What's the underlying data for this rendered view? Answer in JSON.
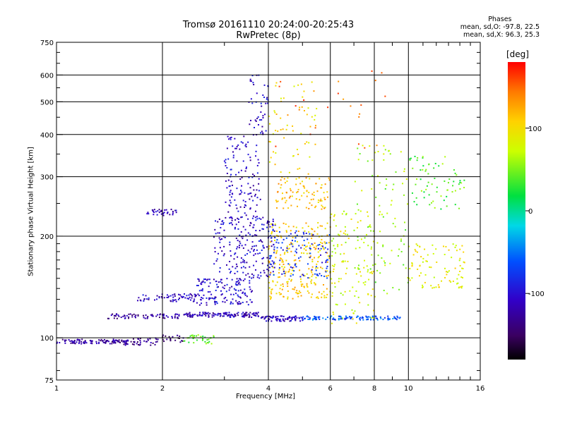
{
  "header": {
    "title_line1": "Tromsø 20161110 20:24:00-20:25:43",
    "title_line2": "RwPretec (8p)"
  },
  "stats": {
    "heading": "Phases",
    "line_O": "mean, sd,O: -97.8, 22.5",
    "line_X": "mean, sd,X:  96.3, 25.3"
  },
  "chart_data": {
    "type": "scatter",
    "xlabel": "Frequency [MHz]",
    "ylabel": "Stationary phase Virtual Height [km]",
    "xscale": "log",
    "yscale": "log",
    "xlim": [
      1,
      16
    ],
    "ylim": [
      75,
      750
    ],
    "xticks": [
      1,
      2,
      4,
      6,
      8,
      10,
      16
    ],
    "yticks": [
      75,
      100,
      200,
      300,
      400,
      500,
      600,
      750
    ],
    "xgrid": [
      2,
      4,
      6,
      8,
      10
    ],
    "ygrid": [
      100,
      200,
      300,
      400,
      500,
      600
    ],
    "grid": true,
    "colorbar": {
      "label": "[deg]",
      "range": [
        -180,
        180
      ],
      "ticks": [
        100,
        0,
        -100
      ]
    },
    "phase_stats": {
      "O": {
        "mean": -97.8,
        "sd": 22.5
      },
      "X": {
        "mean": 96.3,
        "sd": 25.3
      }
    },
    "clusters": [
      {
        "x": [
          1.0,
          1.6
        ],
        "y": [
          96,
          99
        ],
        "phase": -125,
        "n": 110
      },
      {
        "x": [
          1.55,
          1.95
        ],
        "y": [
          95,
          100
        ],
        "phase": -130,
        "n": 40
      },
      {
        "x": [
          2.0,
          2.3
        ],
        "y": [
          97,
          102
        ],
        "phase": -140,
        "n": 20
      },
      {
        "x": [
          2.3,
          2.8
        ],
        "y": [
          96,
          102
        ],
        "phase": 40,
        "n": 35
      },
      {
        "x": [
          1.4,
          2.3
        ],
        "y": [
          114,
          118
        ],
        "phase": -125,
        "n": 70
      },
      {
        "x": [
          2.3,
          3.8
        ],
        "y": [
          115,
          119
        ],
        "phase": -115,
        "n": 130
      },
      {
        "x": [
          3.8,
          5.0
        ],
        "y": [
          112,
          116
        ],
        "phase": -110,
        "n": 80
      },
      {
        "x": [
          5.0,
          9.5
        ],
        "y": [
          113,
          116
        ],
        "phase": -60,
        "n": 110
      },
      {
        "x": [
          1.7,
          2.6
        ],
        "y": [
          128,
          135
        ],
        "phase": -110,
        "n": 70
      },
      {
        "x": [
          2.5,
          3.6
        ],
        "y": [
          125,
          150
        ],
        "phase": -105,
        "n": 140
      },
      {
        "x": [
          2.8,
          4.2
        ],
        "y": [
          150,
          230
        ],
        "phase": -105,
        "n": 220
      },
      {
        "x": [
          3.0,
          3.8
        ],
        "y": [
          230,
          400
        ],
        "phase": -110,
        "n": 120
      },
      {
        "x": [
          3.5,
          4.0
        ],
        "y": [
          400,
          600
        ],
        "phase": -105,
        "n": 45
      },
      {
        "x": [
          1.8,
          2.2
        ],
        "y": [
          230,
          240
        ],
        "phase": -115,
        "n": 35
      },
      {
        "x": [
          4.0,
          6.0
        ],
        "y": [
          130,
          220
        ],
        "phase": 110,
        "n": 260
      },
      {
        "x": [
          4.0,
          6.0
        ],
        "y": [
          150,
          210
        ],
        "phase": -80,
        "n": 110
      },
      {
        "x": [
          4.2,
          6.0
        ],
        "y": [
          240,
          300
        ],
        "phase": 115,
        "n": 90
      },
      {
        "x": [
          4.0,
          5.5
        ],
        "y": [
          300,
          600
        ],
        "phase": 100,
        "n": 60
      },
      {
        "x": [
          6.0,
          8.0
        ],
        "y": [
          110,
          240
        ],
        "phase": 80,
        "n": 120
      },
      {
        "x": [
          7.0,
          10.0
        ],
        "y": [
          130,
          380
        ],
        "phase": 60,
        "n": 100
      },
      {
        "x": [
          10.0,
          14.5
        ],
        "y": [
          140,
          190
        ],
        "phase": 90,
        "n": 90
      },
      {
        "x": [
          10.0,
          14.5
        ],
        "y": [
          240,
          350
        ],
        "phase": 40,
        "n": 70
      },
      {
        "x": [
          4.0,
          9.0
        ],
        "y": [
          350,
          620
        ],
        "phase": 150,
        "n": 25
      }
    ]
  }
}
